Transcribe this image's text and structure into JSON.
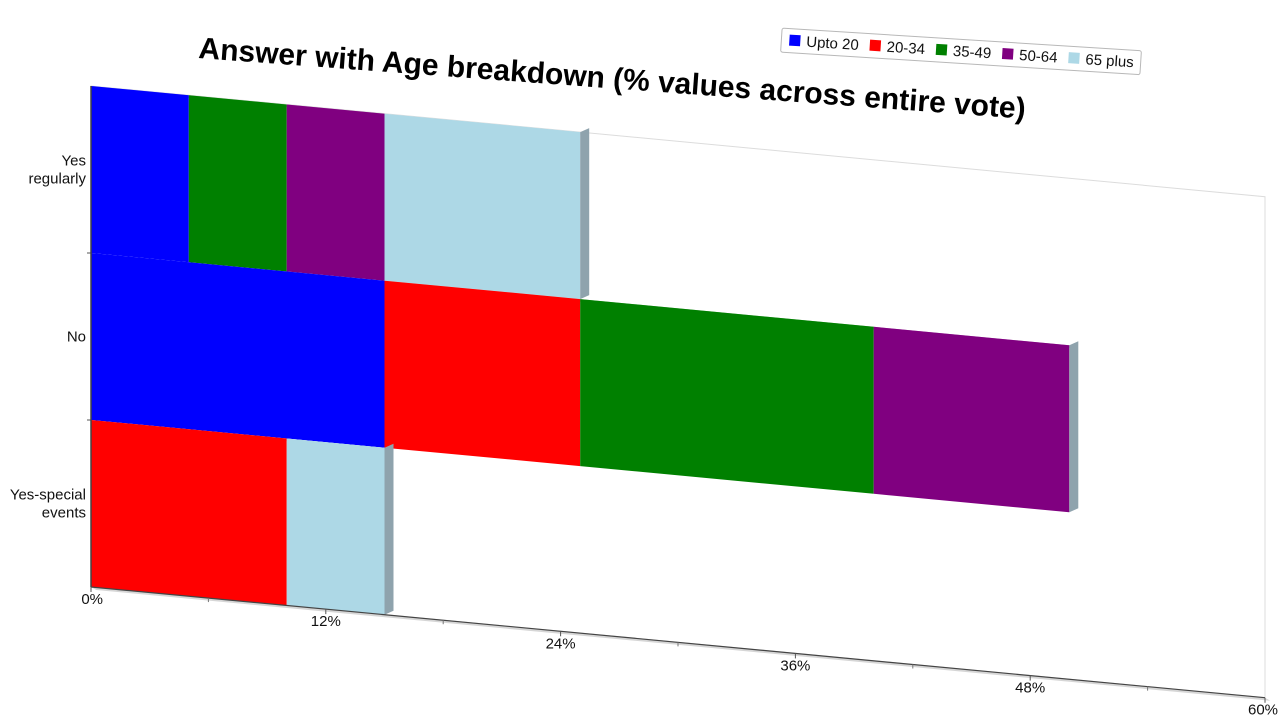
{
  "chart_data": {
    "type": "bar",
    "orientation": "horizontal",
    "stacked": true,
    "title": "Answer with Age breakdown (% values across entire vote)",
    "categories": [
      "Yes regularly",
      "No",
      "Yes-special events"
    ],
    "category_lines": [
      [
        "Yes",
        "regularly"
      ],
      [
        "No"
      ],
      [
        "Yes-special",
        "events"
      ]
    ],
    "series": [
      {
        "name": "Upto 20",
        "color": "#0000ff",
        "values": [
          5,
          15,
          0
        ]
      },
      {
        "name": "20-34",
        "color": "#ff0000",
        "values": [
          0,
          10,
          10
        ]
      },
      {
        "name": "35-49",
        "color": "#008000",
        "values": [
          5,
          15,
          0
        ]
      },
      {
        "name": "50-64",
        "color": "#800080",
        "values": [
          5,
          10,
          0
        ]
      },
      {
        "name": "65 plus",
        "color": "#add8e6",
        "values": [
          10,
          0,
          5
        ]
      }
    ],
    "xlim": [
      0,
      60
    ],
    "x_ticks": [
      "0%",
      "12%",
      "24%",
      "36%",
      "48%",
      "60%"
    ],
    "xlabel": "",
    "ylabel": "",
    "legend_position": "top-right",
    "grid": false
  }
}
